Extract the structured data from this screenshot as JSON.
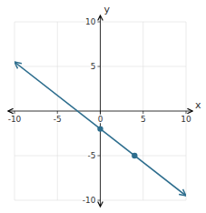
{
  "chart_data": {
    "type": "line",
    "xlabel": "x",
    "ylabel": "y",
    "xlim": [
      -10,
      10
    ],
    "ylim": [
      -10,
      10
    ],
    "xticks": [
      -10,
      -5,
      0,
      5,
      10
    ],
    "yticks": [
      -10,
      -5,
      5,
      10
    ],
    "grid": true,
    "series": [
      {
        "type": "line",
        "color": "#2E6E8E",
        "x": [
          -10,
          10
        ],
        "values": [
          5.5,
          -9.5
        ]
      },
      {
        "type": "scatter",
        "color": "#2E6E8E",
        "x": [
          0,
          4
        ],
        "values": [
          -2,
          -5
        ]
      }
    ]
  }
}
